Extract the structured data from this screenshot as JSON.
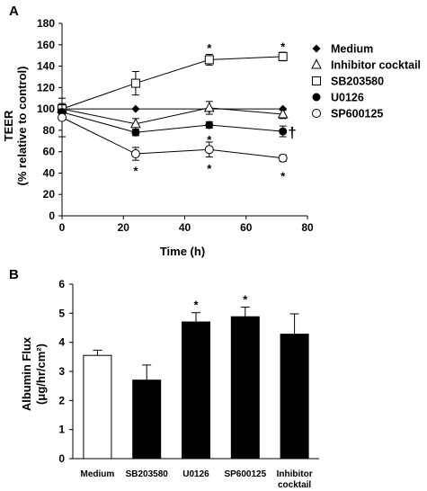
{
  "chart_data": [
    {
      "panel_label": "A",
      "type": "line",
      "xlabel": "Time (h)",
      "ylabel_lines": [
        "TEER",
        "(% relative to control)"
      ],
      "xlim": [
        0,
        80
      ],
      "ylim": [
        0,
        180
      ],
      "xticks": [
        "0",
        "20",
        "40",
        "60",
        "80"
      ],
      "yticks": [
        "0",
        "20",
        "40",
        "60",
        "80",
        "100",
        "120",
        "140",
        "160",
        "180"
      ],
      "grid": false,
      "legend_position": "right",
      "series": [
        {
          "name": "Medium",
          "marker": "diamond",
          "x": [
            0,
            24,
            48,
            72
          ],
          "y": [
            100,
            100,
            100,
            100
          ],
          "err": [
            0,
            0,
            0,
            0
          ]
        },
        {
          "name": "Inhibitor cocktail",
          "marker": "triangle-open",
          "x": [
            0,
            24,
            48,
            72
          ],
          "y": [
            100,
            86,
            101,
            95
          ],
          "err": [
            5,
            5,
            6,
            4
          ]
        },
        {
          "name": "SB203580",
          "marker": "square-open",
          "x": [
            0,
            24,
            48,
            72
          ],
          "y": [
            100,
            124,
            146,
            149
          ],
          "err": [
            4,
            11,
            5,
            4
          ]
        },
        {
          "name": "U0126",
          "marker": "circle-filled",
          "x": [
            0,
            24,
            48,
            72
          ],
          "y": [
            97,
            78,
            85,
            79
          ],
          "err": [
            3,
            3,
            3,
            5
          ]
        },
        {
          "name": "SP600125",
          "marker": "circle-open",
          "x": [
            0,
            24,
            48,
            72
          ],
          "y": [
            92,
            58,
            62,
            54
          ],
          "err": [
            18,
            6,
            7,
            3
          ]
        }
      ],
      "annotations": [
        {
          "text": "*",
          "x": 48,
          "y": 160
        },
        {
          "text": "*",
          "x": 72,
          "y": 161
        },
        {
          "text": "*",
          "x": 24,
          "y": 45
        },
        {
          "text": "*",
          "x": 48,
          "y": 74
        },
        {
          "text": "*",
          "x": 48,
          "y": 47
        },
        {
          "text": "*",
          "x": 72,
          "y": 40
        },
        {
          "text": "†",
          "x": 75,
          "y": 79
        }
      ]
    },
    {
      "panel_label": "B",
      "type": "bar",
      "ylabel_lines": [
        "Albumin Flux",
        "(μg/hr/cm²)"
      ],
      "categories": [
        "Medium",
        "SB203580",
        "U0126",
        "SP600125",
        "Inhibitor cocktail"
      ],
      "category_label_lines": [
        [
          "Medium"
        ],
        [
          "SB203580"
        ],
        [
          "U0126"
        ],
        [
          "SP600125"
        ],
        [
          "Inhibitor",
          "cocktail"
        ]
      ],
      "values": [
        3.55,
        2.7,
        4.7,
        4.88,
        4.28
      ],
      "errors": [
        0.18,
        0.52,
        0.32,
        0.33,
        0.7
      ],
      "fills": [
        "#ffffff",
        "#000000",
        "#000000",
        "#000000",
        "#000000"
      ],
      "significance": [
        "",
        "",
        "*",
        "*",
        ""
      ],
      "ylim": [
        0,
        6
      ],
      "yticks": [
        "0",
        "1",
        "2",
        "3",
        "4",
        "5",
        "6"
      ],
      "grid": false
    }
  ]
}
